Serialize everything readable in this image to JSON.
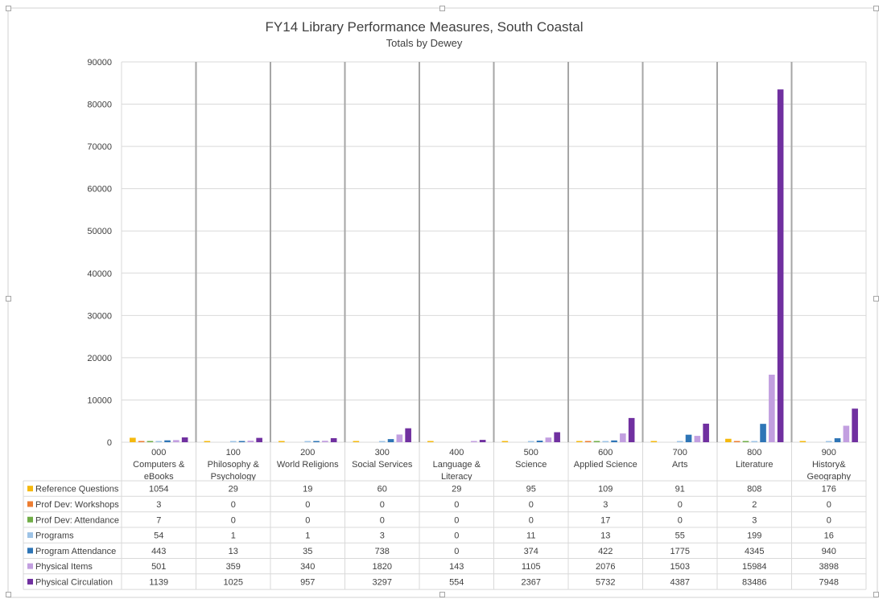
{
  "chart_data": {
    "type": "bar",
    "title": "FY14 Library Performance Measures, South Coastal",
    "subtitle": "Totals by Dewey",
    "xlabel": "",
    "ylabel": "",
    "ylim": [
      0,
      90000
    ],
    "yticks": [
      "0",
      "10000",
      "20000",
      "30000",
      "40000",
      "50000",
      "60000",
      "70000",
      "80000",
      "90000"
    ],
    "grid": true,
    "legend": "data-table-left",
    "categories": [
      [
        "000",
        "Computers &",
        "eBooks"
      ],
      [
        "100",
        "Philosophy &",
        "Psychology"
      ],
      [
        "200",
        "World Religions"
      ],
      [
        "300",
        "Social Services"
      ],
      [
        "400",
        "Language &",
        "Literacy"
      ],
      [
        "500",
        "Science"
      ],
      [
        "600",
        "Applied Science"
      ],
      [
        "700",
        "Arts"
      ],
      [
        "800",
        "Literature"
      ],
      [
        "900",
        "History&",
        "Geography"
      ]
    ],
    "series": [
      {
        "name": "Reference Questions",
        "color": "#f5b90f",
        "values": [
          1054,
          29,
          19,
          60,
          29,
          95,
          109,
          91,
          808,
          176
        ]
      },
      {
        "name": "Prof Dev: Workshops",
        "color": "#ed7d31",
        "values": [
          3,
          0,
          0,
          0,
          0,
          0,
          3,
          0,
          2,
          0
        ]
      },
      {
        "name": "Prof Dev: Attendance",
        "color": "#70ad47",
        "values": [
          7,
          0,
          0,
          0,
          0,
          0,
          17,
          0,
          3,
          0
        ]
      },
      {
        "name": "Programs",
        "color": "#9dc3e6",
        "values": [
          54,
          1,
          1,
          3,
          0,
          11,
          13,
          55,
          199,
          16
        ]
      },
      {
        "name": "Program Attendance",
        "color": "#2e75b6",
        "values": [
          443,
          13,
          35,
          738,
          0,
          374,
          422,
          1775,
          4345,
          940
        ]
      },
      {
        "name": "Physical Items",
        "color": "#c29fe0",
        "values": [
          501,
          359,
          340,
          1820,
          143,
          1105,
          2076,
          1503,
          15984,
          3898
        ]
      },
      {
        "name": "Physical Circulation",
        "color": "#7030a0",
        "values": [
          1139,
          1025,
          957,
          3297,
          554,
          2367,
          5732,
          4387,
          83486,
          7948
        ]
      }
    ]
  }
}
